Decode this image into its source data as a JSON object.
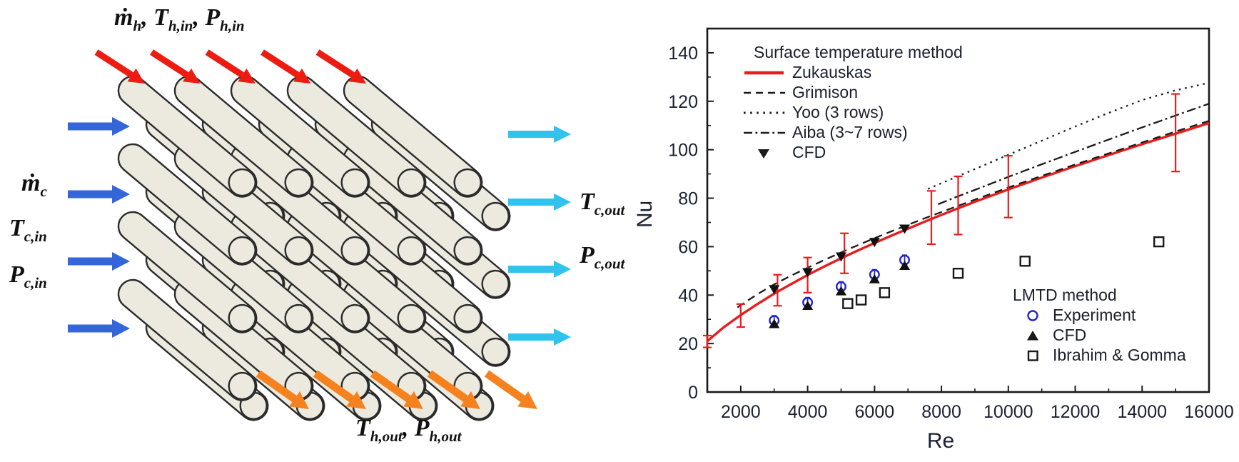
{
  "colors": {
    "hot": "#ec1c12",
    "cold_in": "#3465d9",
    "cold_out": "#2fc3ee",
    "hot_out": "#f5821e",
    "tube_fill": "#eceade",
    "tube_stroke": "#2b2b2b",
    "chart_red": "#e81c1c",
    "chart_blue": "#2323cc",
    "chart_black": "#1a1a1a",
    "axis_text": "#1c2133"
  },
  "figure": {
    "left_diagram": {
      "hot_inlet_label": [
        {
          "t": "ṁ"
        },
        {
          "t": "h",
          "sub": true
        },
        {
          "t": ", T"
        },
        {
          "t": "h,in",
          "sub": true
        },
        {
          "t": ", P"
        },
        {
          "t": "h,in",
          "sub": true
        }
      ],
      "cold_inlet_labels": {
        "mdot": [
          {
            "t": "ṁ"
          },
          {
            "t": "c",
            "sub": true
          }
        ],
        "t_in": [
          {
            "t": "T"
          },
          {
            "t": "c,in",
            "sub": true
          }
        ],
        "p_in": [
          {
            "t": "P"
          },
          {
            "t": "c,in",
            "sub": true
          }
        ]
      },
      "cold_outlet_labels": {
        "t_out": [
          {
            "t": "T"
          },
          {
            "t": "c,out",
            "sub": true
          }
        ],
        "p_out": [
          {
            "t": "P"
          },
          {
            "t": "c,out",
            "sub": true
          }
        ]
      },
      "hot_outlet_label": [
        {
          "t": "T"
        },
        {
          "t": "h,out",
          "sub": true
        },
        {
          "t": ", P"
        },
        {
          "t": "h,out",
          "sub": true
        }
      ],
      "arrow_counts": {
        "hot_inlet": 5,
        "cold_inlet": 4,
        "cold_outlet": 4,
        "hot_outlet": 5
      },
      "tube_grid": {
        "columns": 5,
        "rows": 4,
        "layers": 2
      }
    }
  },
  "chart_data": {
    "type": "line",
    "title": "",
    "xlabel": "Re",
    "ylabel": "Nu",
    "xlim": [
      1000,
      16000
    ],
    "ylim": [
      0,
      150
    ],
    "x_major_ticks": [
      2000,
      4000,
      6000,
      8000,
      10000,
      12000,
      14000,
      16000
    ],
    "x_minor_ticks": [
      3000,
      5000,
      7000,
      9000,
      11000,
      13000,
      15000
    ],
    "y_major_ticks": [
      0,
      20,
      40,
      60,
      80,
      100,
      120,
      140
    ],
    "y_minor_ticks": [
      10,
      30,
      50,
      70,
      90,
      110,
      130
    ],
    "grid": false,
    "legend_surface": {
      "title": "Surface temperature method",
      "items": [
        {
          "label": "Zukauskas",
          "style": "line-solid"
        },
        {
          "label": "Grimison",
          "style": "line-dashed"
        },
        {
          "label": "Yoo (3 rows)",
          "style": "line-dotted"
        },
        {
          "label": "Aiba (3~7 rows)",
          "style": "line-dashdot"
        },
        {
          "label": "CFD",
          "style": "marker-triangle-down"
        }
      ]
    },
    "legend_lmtd": {
      "title": "LMTD method",
      "items": [
        {
          "label": "Experiment",
          "style": "marker-circle-open"
        },
        {
          "label": "CFD",
          "style": "marker-triangle-up"
        },
        {
          "label": "Ibrahim & Gomma",
          "style": "marker-square-open"
        }
      ]
    },
    "series": [
      {
        "id": "zukauskas",
        "name": "Zukauskas",
        "group": "Surface temperature method",
        "style": "line-solid",
        "color": "#e81c1c",
        "points": [
          [
            1000,
            21
          ],
          [
            1500,
            26.8
          ],
          [
            2000,
            31.8
          ],
          [
            2500,
            36.3
          ],
          [
            3000,
            40.6
          ],
          [
            3500,
            44.5
          ],
          [
            4000,
            48.3
          ],
          [
            4500,
            51.8
          ],
          [
            5000,
            55.2
          ],
          [
            5500,
            58.4
          ],
          [
            6000,
            61.5
          ],
          [
            6500,
            64.5
          ],
          [
            7000,
            67.4
          ],
          [
            7500,
            70.3
          ],
          [
            8000,
            73.1
          ],
          [
            9000,
            78.5
          ],
          [
            10000,
            83.6
          ],
          [
            11000,
            88.5
          ],
          [
            12000,
            93.2
          ],
          [
            13000,
            97.8
          ],
          [
            14000,
            102.3
          ],
          [
            15000,
            106.6
          ],
          [
            16000,
            111
          ]
        ]
      },
      {
        "id": "grimison",
        "name": "Grimison",
        "group": "Surface temperature method",
        "style": "line-dashed",
        "color": "#1a1a1a",
        "points": [
          [
            1900,
            34.9
          ],
          [
            2200,
            37.7
          ],
          [
            2600,
            41.2
          ],
          [
            3000,
            44.4
          ],
          [
            3500,
            48
          ],
          [
            4000,
            51.3
          ],
          [
            4500,
            54.5
          ],
          [
            5000,
            57.6
          ],
          [
            5500,
            60.6
          ],
          [
            6000,
            63.5
          ],
          [
            6500,
            66.3
          ],
          [
            7000,
            69
          ],
          [
            7500,
            71.7
          ],
          [
            8000,
            74.3
          ],
          [
            9000,
            79.4
          ],
          [
            10000,
            84.4
          ],
          [
            11000,
            89.2
          ],
          [
            12000,
            93.9
          ],
          [
            13000,
            98.5
          ],
          [
            14000,
            103
          ],
          [
            15000,
            107.5
          ],
          [
            16000,
            111.9
          ]
        ]
      },
      {
        "id": "yoo",
        "name": "Yoo (3 rows)",
        "group": "Surface temperature method",
        "style": "line-dotted",
        "color": "#1a1a1a",
        "points": [
          [
            7600,
            83.8
          ],
          [
            8000,
            86.2
          ],
          [
            9000,
            92
          ],
          [
            10000,
            97.9
          ],
          [
            11000,
            103.7
          ],
          [
            12000,
            109.6
          ],
          [
            13000,
            115.2
          ],
          [
            14000,
            120.5
          ],
          [
            15000,
            124.5
          ],
          [
            16000,
            127.6
          ]
        ]
      },
      {
        "id": "aiba",
        "name": "Aiba (3~7 rows)",
        "group": "Surface temperature method",
        "style": "line-dashdot",
        "color": "#1a1a1a",
        "points": [
          [
            7900,
            77.5
          ],
          [
            8500,
            80.8
          ],
          [
            9000,
            83.4
          ],
          [
            10000,
            88.8
          ],
          [
            11000,
            94
          ],
          [
            12000,
            99.1
          ],
          [
            13000,
            104.2
          ],
          [
            14000,
            109.2
          ],
          [
            15000,
            114.1
          ],
          [
            16000,
            119
          ]
        ]
      },
      {
        "id": "cfd_surface",
        "name": "CFD",
        "group": "Surface temperature method",
        "style": "marker-triangle-down",
        "color": "#111111",
        "points": [
          [
            3000,
            42.5
          ],
          [
            4000,
            49.5
          ],
          [
            5000,
            56
          ],
          [
            6000,
            62
          ],
          [
            6900,
            67.5
          ]
        ]
      },
      {
        "id": "experiment",
        "name": "Experiment",
        "group": "LMTD method",
        "style": "marker-circle-open",
        "color": "#2323cc",
        "whisker": 2,
        "points": [
          [
            3000,
            29.5
          ],
          [
            4000,
            37
          ],
          [
            5000,
            43.5
          ],
          [
            6000,
            48.5
          ],
          [
            6900,
            54.5
          ]
        ]
      },
      {
        "id": "cfd_lmtd",
        "name": "CFD",
        "group": "LMTD method",
        "style": "marker-triangle-up",
        "color": "#111111",
        "points": [
          [
            3000,
            28
          ],
          [
            4000,
            35.5
          ],
          [
            5000,
            41.5
          ],
          [
            6000,
            46.5
          ],
          [
            6900,
            52
          ]
        ]
      },
      {
        "id": "ibrahim",
        "name": "Ibrahim & Gomma",
        "group": "LMTD method",
        "style": "marker-square-open",
        "color": "#1a1a1a",
        "points": [
          [
            5200,
            36.5
          ],
          [
            5600,
            38
          ],
          [
            6300,
            41
          ],
          [
            8500,
            49
          ],
          [
            10500,
            54
          ],
          [
            14500,
            62
          ]
        ]
      }
    ],
    "error_bars": {
      "on_series": "Zukauskas",
      "color": "#e81c1c",
      "points": [
        {
          "x": 1000,
          "lo": 18.4,
          "hi": 23.3
        },
        {
          "x": 2000,
          "lo": 26.8,
          "hi": 36.3
        },
        {
          "x": 3100,
          "lo": 35.6,
          "hi": 48.4
        },
        {
          "x": 4000,
          "lo": 41,
          "hi": 55.5
        },
        {
          "x": 5100,
          "lo": 49,
          "hi": 65.5
        },
        {
          "x": 7700,
          "lo": 61,
          "hi": 83
        },
        {
          "x": 8500,
          "lo": 65,
          "hi": 89
        },
        {
          "x": 10000,
          "lo": 72,
          "hi": 97.5
        },
        {
          "x": 15000,
          "lo": 91,
          "hi": 123
        }
      ]
    }
  }
}
